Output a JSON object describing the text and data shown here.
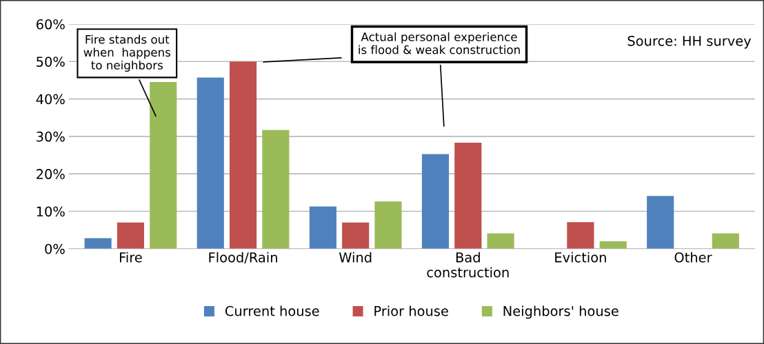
{
  "chart_data": {
    "type": "bar",
    "categories": [
      "Fire",
      "Flood/Rain",
      "Wind",
      "Bad\nconstruction",
      "Eviction",
      "Other"
    ],
    "series": [
      {
        "name": "Current house",
        "color": "#4f81bd",
        "values": [
          2.8,
          45.7,
          11.3,
          25.3,
          0,
          14.1
        ]
      },
      {
        "name": "Prior house",
        "color": "#c0504d",
        "values": [
          7.0,
          50,
          7.0,
          28.3,
          7.1,
          0
        ]
      },
      {
        "name": "Neighbors' house",
        "color": "#9bbb59",
        "values": [
          44.5,
          31.7,
          12.6,
          4.1,
          2.0,
          4.1
        ]
      }
    ],
    "ylim": [
      0,
      60
    ],
    "yticks": [
      {
        "value": 0,
        "label": "0%"
      },
      {
        "value": 10,
        "label": "10%"
      },
      {
        "value": 20,
        "label": "20%"
      },
      {
        "value": 30,
        "label": "30%"
      },
      {
        "value": 40,
        "label": "40%"
      },
      {
        "value": 50,
        "label": "50%"
      },
      {
        "value": 60,
        "label": "60%"
      }
    ],
    "grid": "y",
    "legend": "bottom",
    "annotations": [
      "Fire stands out\nwhen  happens\nto neighbors",
      "Actual personal experience\nis flood & weak construction",
      "Source: HH survey"
    ]
  }
}
